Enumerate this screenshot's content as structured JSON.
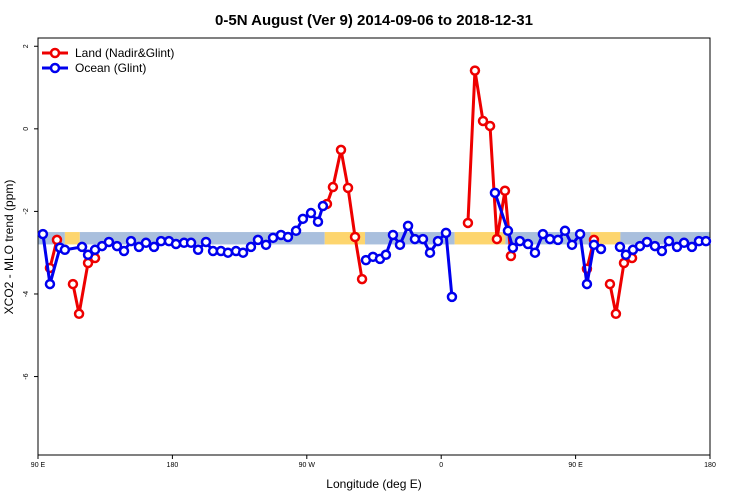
{
  "chart_data": {
    "type": "line",
    "title": "0-5N August (Ver 9)   2014-09-06 to 2018-12-31",
    "x_label": "Longitude (deg E)",
    "y_label": "XCO2 - MLO trend (ppm)",
    "xlim": [
      90,
      540
    ],
    "ylim": [
      -7.9,
      2.2
    ],
    "xticks": [
      {
        "value": 90,
        "label": "90 E"
      },
      {
        "value": 180,
        "label": "180"
      },
      {
        "value": 270,
        "label": "90 W"
      },
      {
        "value": 360,
        "label": "0"
      },
      {
        "value": 450,
        "label": "90 E"
      },
      {
        "value": 540,
        "label": "180"
      }
    ],
    "yticks": [
      2,
      0,
      -2,
      -4,
      -6
    ],
    "legend": "top-left",
    "band": {
      "ylim": [
        -2.8,
        -2.5
      ],
      "segments": [
        {
          "x": [
            90,
            108
          ],
          "color": "#a9bfdd"
        },
        {
          "x": [
            108,
            118
          ],
          "color": "#fdd56e"
        },
        {
          "x": [
            118,
            282
          ],
          "color": "#a9bfdd"
        },
        {
          "x": [
            282,
            309
          ],
          "color": "#fdd56e"
        },
        {
          "x": [
            309,
            369
          ],
          "color": "#a9bfdd"
        },
        {
          "x": [
            369,
            403
          ],
          "color": "#fdd56e"
        },
        {
          "x": [
            403,
            460
          ],
          "color": "#a9bfdd"
        },
        {
          "x": [
            460,
            480
          ],
          "color": "#fdd56e"
        },
        {
          "x": [
            480,
            540
          ],
          "color": "#a9bfdd"
        }
      ]
    },
    "series": [
      {
        "name": "Land (Nadir&Glint)",
        "color": "#ee0000",
        "x": [
          98,
          102.7,
          null,
          113.4,
          117.5,
          123.5,
          128.2,
          null,
          283.5,
          287.5,
          292.9,
          297.6,
          302.3,
          307,
          null,
          377.9,
          382.6,
          388,
          392.7,
          397.3,
          402.7,
          406.7,
          null,
          457.6,
          462.3,
          null,
          473,
          477,
          482.4,
          487.8
        ],
        "values": [
          -3.37,
          -2.69,
          null,
          -3.76,
          -4.48,
          -3.25,
          -3.13,
          null,
          -1.82,
          -1.41,
          -0.51,
          -1.43,
          -2.62,
          -3.64,
          null,
          -2.28,
          1.41,
          0.19,
          0.07,
          -2.67,
          -1.5,
          -3.08,
          null,
          -3.39,
          -2.69,
          null,
          -3.76,
          -4.48,
          -3.25,
          -3.13
        ]
      },
      {
        "name": "Ocean (Glint)",
        "color": "#0000ee",
        "x": [
          93.3,
          98,
          104.7,
          108,
          119.5,
          123.5,
          128.2,
          132.9,
          137.5,
          142.9,
          147.6,
          152.3,
          157.6,
          162.3,
          167.7,
          172.4,
          177.7,
          182.4,
          187.8,
          192.5,
          197.2,
          202.5,
          207.2,
          212.5,
          217.2,
          222.6,
          227.3,
          232.6,
          237.3,
          242.7,
          247.4,
          252.7,
          257.4,
          262.8,
          267.4,
          272.8,
          277.5,
          280.8,
          null,
          309.6,
          314.3,
          319,
          323,
          327.7,
          332.4,
          337.8,
          342.4,
          347.8,
          352.5,
          357.8,
          363.2,
          367.2,
          null,
          396,
          404.7,
          408,
          412.7,
          418.1,
          422.8,
          428.1,
          432.8,
          438.2,
          442.9,
          447.6,
          453,
          457.6,
          462.3,
          467,
          null,
          479.7,
          483.7,
          488.4,
          493.1,
          497.8,
          503.1,
          507.8,
          512.5,
          517.9,
          522.6,
          527.9,
          532.6,
          537.3
        ],
        "values": [
          -2.55,
          -3.76,
          -2.88,
          -2.93,
          -2.86,
          -3.05,
          -2.93,
          -2.84,
          -2.74,
          -2.84,
          -2.96,
          -2.72,
          -2.86,
          -2.76,
          -2.86,
          -2.72,
          -2.72,
          -2.79,
          -2.76,
          -2.76,
          -2.93,
          -2.74,
          -2.96,
          -2.96,
          -3.0,
          -2.96,
          -3.0,
          -2.86,
          -2.69,
          -2.81,
          -2.64,
          -2.57,
          -2.62,
          -2.47,
          -2.18,
          -2.04,
          -2.25,
          -1.87,
          null,
          -3.18,
          -3.1,
          -3.15,
          -3.05,
          -2.57,
          -2.81,
          -2.35,
          -2.67,
          -2.67,
          -3.0,
          -2.72,
          -2.52,
          -4.07,
          null,
          -1.55,
          -2.47,
          -2.88,
          -2.72,
          -2.79,
          -3.0,
          -2.55,
          -2.67,
          -2.69,
          -2.47,
          -2.81,
          -2.55,
          -3.76,
          -2.81,
          -2.91,
          null,
          -2.86,
          -3.05,
          -2.93,
          -2.84,
          -2.74,
          -2.84,
          -2.96,
          -2.72,
          -2.86,
          -2.76,
          -2.86,
          -2.72,
          -2.72
        ]
      }
    ]
  }
}
